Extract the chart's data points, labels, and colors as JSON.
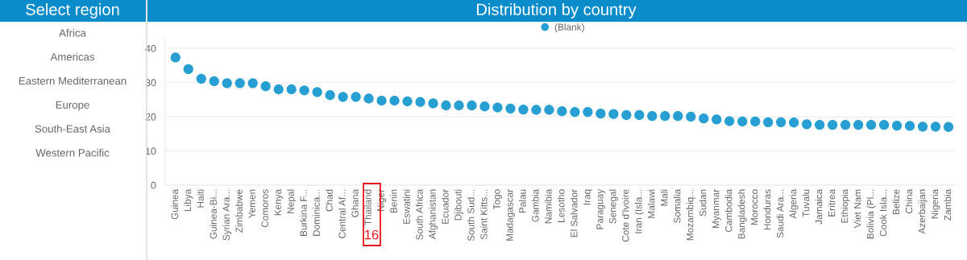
{
  "chart_data": [
    {
      "type": "other",
      "title": "Select region",
      "annotations": [
        "Africa",
        "Americas",
        "Eastern Mediterranean",
        "Europe",
        "South-East Asia",
        "Western Pacific"
      ]
    },
    {
      "type": "scatter",
      "title": "Distribution by country",
      "categories": [
        "Guinea",
        "Libya",
        "Haiti",
        "Guinea-Bi...",
        "Syrian Ara...",
        "Zimbabwe",
        "Yemen",
        "Comoros",
        "Kenya",
        "Nepal",
        "Burkina F...",
        "Dominica...",
        "Chad",
        "Central Af...",
        "Ghana",
        "Thailand",
        "Niger",
        "Benin",
        "Eswatini",
        "South Africa",
        "Afghanistan",
        "Ecuador",
        "Djibouti",
        "South Sud...",
        "Saint Kitts...",
        "Togo",
        "Madagascar",
        "Palau",
        "Gambia",
        "Namibia",
        "Lesotho",
        "El Salvador",
        "Iraq",
        "Paraguay",
        "Senegal",
        "Cote d'Ivoire",
        "Iran (Isla...",
        "Malawi",
        "Mali",
        "Somalia",
        "Mozambiq...",
        "Sudan",
        "Myanmar",
        "Cambodia",
        "Bangladesh",
        "Morocco",
        "Honduras",
        "Saudi Ara...",
        "Algeria",
        "Tuvalu",
        "Jamaica",
        "Eritrea",
        "Ethiopia",
        "Viet Nam",
        "Bolivia (Pl...",
        "Cook Isla...",
        "Belize",
        "China",
        "Azerbaijan",
        "Nigeria",
        "Zambia"
      ],
      "series": [
        {
          "name": "(Blank)",
          "color": "#279fd3",
          "values": [
            37.3,
            33.9,
            31.1,
            30.4,
            29.8,
            29.8,
            29.8,
            28.9,
            28.0,
            28.0,
            27.7,
            27.2,
            26.3,
            25.8,
            25.8,
            25.3,
            24.7,
            24.7,
            24.5,
            24.3,
            23.9,
            23.3,
            23.3,
            23.3,
            23.0,
            22.7,
            22.4,
            22.1,
            22.0,
            22.0,
            21.6,
            21.4,
            21.4,
            20.9,
            20.8,
            20.5,
            20.5,
            20.2,
            20.2,
            20.2,
            20.0,
            19.5,
            19.2,
            18.7,
            18.6,
            18.6,
            18.4,
            18.4,
            18.3,
            17.8,
            17.6,
            17.6,
            17.6,
            17.6,
            17.6,
            17.6,
            17.4,
            17.3,
            17.1,
            17.1,
            17.0
          ]
        }
      ],
      "ylim": [
        0,
        43
      ],
      "yticks": [
        0,
        10,
        20,
        30,
        40
      ],
      "grid": "y",
      "legend": "top",
      "marker": "circle",
      "annotations": [
        "16"
      ]
    }
  ]
}
